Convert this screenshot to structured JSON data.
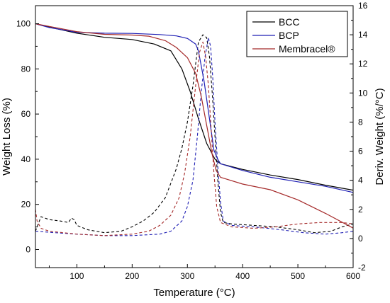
{
  "chart_data": {
    "type": "line",
    "xlabel": "Temperature (°C)",
    "ylabel_left": "Weight Loss (%)",
    "ylabel_right": "Deriv. Weight (%/°C)",
    "xlim": [
      25,
      600
    ],
    "ylim_left": [
      -8,
      108
    ],
    "ylim_right": [
      -2,
      16
    ],
    "x_ticks": [
      100,
      200,
      300,
      400,
      500,
      600
    ],
    "y_ticks_left": [
      0,
      20,
      40,
      60,
      80,
      100
    ],
    "y_ticks_right": [
      -2,
      0,
      2,
      4,
      6,
      8,
      10,
      12,
      14,
      16
    ],
    "grid": false,
    "legend_position": "top-right",
    "series": [
      {
        "name": "BCC",
        "color": "#000000",
        "tga": [
          [
            25,
            100
          ],
          [
            50,
            98.5
          ],
          [
            100,
            95.8
          ],
          [
            150,
            94
          ],
          [
            200,
            93
          ],
          [
            240,
            91
          ],
          [
            270,
            88
          ],
          [
            290,
            80
          ],
          [
            305,
            70
          ],
          [
            320,
            58
          ],
          [
            335,
            47
          ],
          [
            350,
            40
          ],
          [
            360,
            38
          ],
          [
            400,
            35.5
          ],
          [
            450,
            33
          ],
          [
            500,
            31
          ],
          [
            550,
            28.5
          ],
          [
            600,
            26.3
          ]
        ],
        "dtg": [
          [
            25,
            0.5
          ],
          [
            35,
            1.5
          ],
          [
            50,
            1.3
          ],
          [
            70,
            1.2
          ],
          [
            85,
            1.1
          ],
          [
            90,
            1.4
          ],
          [
            95,
            1.3
          ],
          [
            100,
            0.9
          ],
          [
            120,
            0.6
          ],
          [
            150,
            0.4
          ],
          [
            180,
            0.5
          ],
          [
            200,
            0.8
          ],
          [
            220,
            1.2
          ],
          [
            240,
            1.8
          ],
          [
            260,
            2.8
          ],
          [
            270,
            3.8
          ],
          [
            280,
            4.8
          ],
          [
            290,
            6.2
          ],
          [
            300,
            8
          ],
          [
            310,
            10.5
          ],
          [
            320,
            13.5
          ],
          [
            328,
            14
          ],
          [
            335,
            13.8
          ],
          [
            340,
            12.5
          ],
          [
            345,
            10
          ],
          [
            350,
            7
          ],
          [
            355,
            4
          ],
          [
            360,
            1.8
          ],
          [
            365,
            1.1
          ],
          [
            380,
            1.0
          ],
          [
            420,
            0.9
          ],
          [
            460,
            0.8
          ],
          [
            500,
            0.6
          ],
          [
            530,
            0.4
          ],
          [
            560,
            0.5
          ],
          [
            580,
            0.8
          ],
          [
            600,
            1.0
          ]
        ]
      },
      {
        "name": "BCP",
        "color": "#1f1fb4",
        "tga": [
          [
            25,
            100
          ],
          [
            50,
            98.3
          ],
          [
            100,
            96.2
          ],
          [
            150,
            95.8
          ],
          [
            200,
            95.7
          ],
          [
            250,
            95.2
          ],
          [
            280,
            94.6
          ],
          [
            300,
            93.5
          ],
          [
            315,
            91
          ],
          [
            320,
            88
          ],
          [
            330,
            75
          ],
          [
            340,
            58
          ],
          [
            348,
            44
          ],
          [
            355,
            40
          ],
          [
            360,
            38
          ],
          [
            400,
            35
          ],
          [
            450,
            32
          ],
          [
            500,
            30
          ],
          [
            550,
            28
          ],
          [
            600,
            25.3
          ]
        ],
        "dtg": [
          [
            25,
            0.5
          ],
          [
            60,
            0.4
          ],
          [
            100,
            0.3
          ],
          [
            150,
            0.2
          ],
          [
            200,
            0.2
          ],
          [
            250,
            0.3
          ],
          [
            270,
            0.5
          ],
          [
            290,
            1.2
          ],
          [
            300,
            2.2
          ],
          [
            310,
            4
          ],
          [
            318,
            7
          ],
          [
            325,
            10
          ],
          [
            332,
            12.5
          ],
          [
            338,
            13.8
          ],
          [
            342,
            13.2
          ],
          [
            346,
            11
          ],
          [
            350,
            8
          ],
          [
            355,
            5
          ],
          [
            360,
            2.5
          ],
          [
            365,
            1.2
          ],
          [
            380,
            0.9
          ],
          [
            420,
            0.8
          ],
          [
            470,
            0.6
          ],
          [
            510,
            0.4
          ],
          [
            550,
            0.3
          ],
          [
            580,
            0.4
          ],
          [
            600,
            0.5
          ]
        ]
      },
      {
        "name": "Membracel®",
        "color": "#a52a2a",
        "tga": [
          [
            25,
            100
          ],
          [
            50,
            98.8
          ],
          [
            100,
            96.5
          ],
          [
            150,
            95.3
          ],
          [
            200,
            95
          ],
          [
            230,
            94.5
          ],
          [
            260,
            92.5
          ],
          [
            280,
            89.5
          ],
          [
            300,
            85
          ],
          [
            315,
            78
          ],
          [
            325,
            68
          ],
          [
            335,
            55
          ],
          [
            345,
            42
          ],
          [
            352,
            35
          ],
          [
            360,
            32
          ],
          [
            400,
            29
          ],
          [
            450,
            26.5
          ],
          [
            500,
            22
          ],
          [
            550,
            16
          ],
          [
            600,
            9.5
          ]
        ],
        "dtg": [
          [
            25,
            2
          ],
          [
            28,
            1.2
          ],
          [
            35,
            0.7
          ],
          [
            50,
            0.5
          ],
          [
            100,
            0.3
          ],
          [
            150,
            0.2
          ],
          [
            200,
            0.3
          ],
          [
            230,
            0.5
          ],
          [
            250,
            0.9
          ],
          [
            270,
            1.6
          ],
          [
            285,
            2.8
          ],
          [
            295,
            4.5
          ],
          [
            305,
            7
          ],
          [
            315,
            10.5
          ],
          [
            322,
            12.8
          ],
          [
            328,
            13.5
          ],
          [
            333,
            12.5
          ],
          [
            338,
            10.5
          ],
          [
            343,
            7.5
          ],
          [
            348,
            4.5
          ],
          [
            353,
            2.2
          ],
          [
            360,
            1.1
          ],
          [
            380,
            0.8
          ],
          [
            420,
            0.7
          ],
          [
            460,
            0.8
          ],
          [
            500,
            1.0
          ],
          [
            540,
            1.1
          ],
          [
            580,
            1.1
          ],
          [
            600,
            1.0
          ]
        ]
      }
    ]
  }
}
